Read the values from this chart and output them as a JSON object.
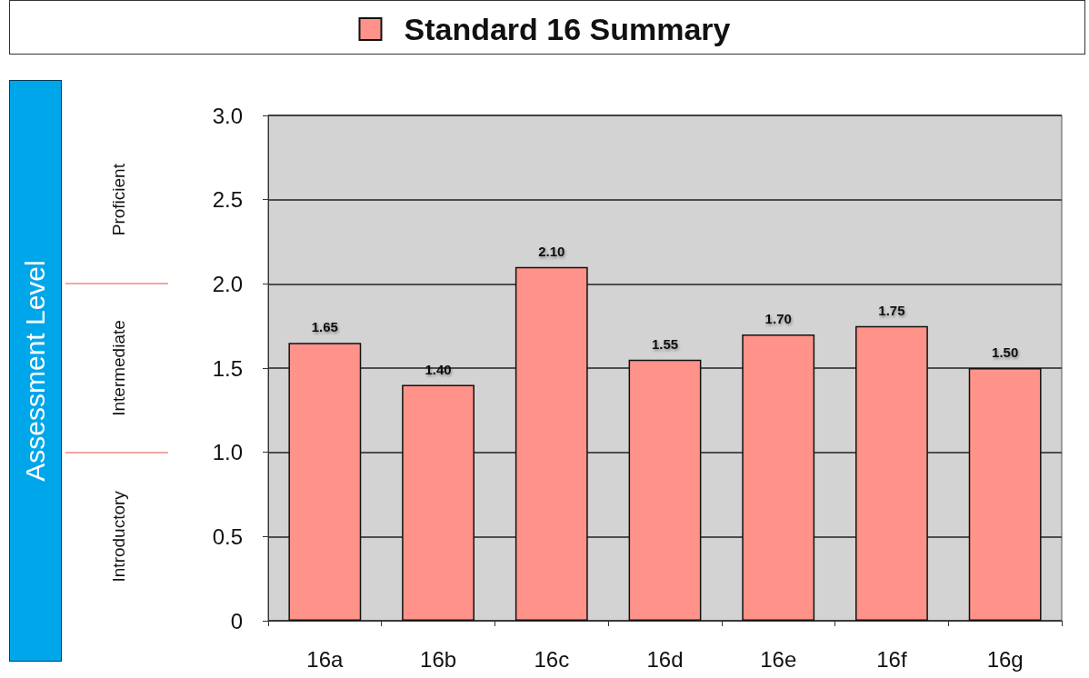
{
  "chart_data": {
    "type": "bar",
    "categories": [
      "16a",
      "16b",
      "16c",
      "16d",
      "16e",
      "16f",
      "16g"
    ],
    "series": [
      {
        "name": "Standard 16 Summary",
        "color": "#ff938a",
        "values": [
          1.65,
          1.4,
          2.1,
          1.55,
          1.7,
          1.75,
          1.5
        ],
        "value_labels": [
          "1.65",
          "1.40",
          "2.10",
          "1.55",
          "1.70",
          "1.75",
          "1.50"
        ]
      }
    ],
    "ylim": [
      0,
      3
    ],
    "yticks": [
      0,
      0.5,
      {
        "value": 1,
        "label": "1.0"
      },
      1.5,
      {
        "value": 2,
        "label": "2.0"
      },
      2.5,
      {
        "value": 3,
        "label": "3.0"
      }
    ],
    "grid": "y",
    "legend": "top",
    "annotations": [
      "Assessment Level",
      "Introductory",
      "Intermediate",
      "Proficient"
    ]
  }
}
